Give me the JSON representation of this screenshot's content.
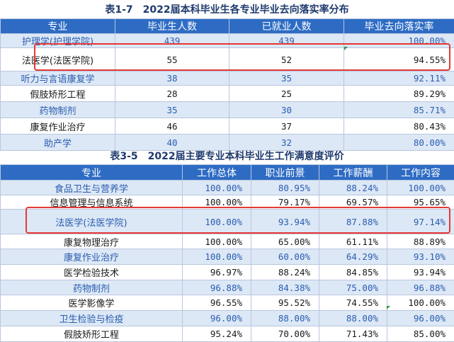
{
  "table1": {
    "title": "表1-7　2022届本科毕业生各专业毕业去向落实率分布",
    "headers": [
      "专业",
      "毕业生人数",
      "已就业人数",
      "毕业去向落实率"
    ],
    "rows": [
      {
        "major": "护理学(护理学院)",
        "graduates": "439",
        "employed": "439",
        "rate": "100.00%"
      },
      {
        "major": "法医学(法医学院)",
        "graduates": "55",
        "employed": "52",
        "rate": "94.55%"
      },
      {
        "major": "听力与言语康复学",
        "graduates": "38",
        "employed": "35",
        "rate": "92.11%"
      },
      {
        "major": "假肢矫形工程",
        "graduates": "28",
        "employed": "25",
        "rate": "89.29%"
      },
      {
        "major": "药物制剂",
        "graduates": "35",
        "employed": "30",
        "rate": "85.71%"
      },
      {
        "major": "康复作业治疗",
        "graduates": "46",
        "employed": "37",
        "rate": "80.43%"
      },
      {
        "major": "助产学",
        "graduates": "40",
        "employed": "32",
        "rate": "80.00%"
      }
    ]
  },
  "table2": {
    "title": "表3-5　2022届主要专业本科毕业生工作满意度评价",
    "headers": [
      "专业",
      "工作总体",
      "职业前景",
      "工作薪酬",
      "工作内容"
    ],
    "rows": [
      {
        "major": "食品卫生与营养学",
        "overall": "100.00%",
        "prospect": "80.95%",
        "salary": "88.24%",
        "content": "100.00%"
      },
      {
        "major": "信息管理与信息系统",
        "overall": "100.00%",
        "prospect": "79.17%",
        "salary": "69.57%",
        "content": "95.65%"
      },
      {
        "major": "法医学(法医学院)",
        "overall": "100.00%",
        "prospect": "93.94%",
        "salary": "87.88%",
        "content": "97.14%"
      },
      {
        "major": "康复物理治疗",
        "overall": "100.00%",
        "prospect": "65.00%",
        "salary": "61.11%",
        "content": "88.89%"
      },
      {
        "major": "康复作业治疗",
        "overall": "100.00%",
        "prospect": "60.00%",
        "salary": "64.29%",
        "content": "93.10%"
      },
      {
        "major": "医学检验技术",
        "overall": "96.97%",
        "prospect": "88.24%",
        "salary": "84.85%",
        "content": "93.94%"
      },
      {
        "major": "药物制剂",
        "overall": "96.88%",
        "prospect": "84.38%",
        "salary": "75.00%",
        "content": "96.88%"
      },
      {
        "major": "医学影像学",
        "overall": "96.55%",
        "prospect": "95.52%",
        "salary": "74.55%",
        "content": "100.00%"
      },
      {
        "major": "卫生检验与检疫",
        "overall": "96.00%",
        "prospect": "88.00%",
        "salary": "88.00%",
        "content": "96.00%"
      },
      {
        "major": "假肢矫形工程",
        "overall": "95.24%",
        "prospect": "70.00%",
        "salary": "71.43%",
        "content": "85.00%"
      }
    ]
  },
  "colors": {
    "header_bg": "#2e6cc4",
    "alt_row_bg": "#dde8f6",
    "alt_row_text": "#2a5db0",
    "highlight": "#e53935",
    "title_text": "#1f3a6e"
  }
}
